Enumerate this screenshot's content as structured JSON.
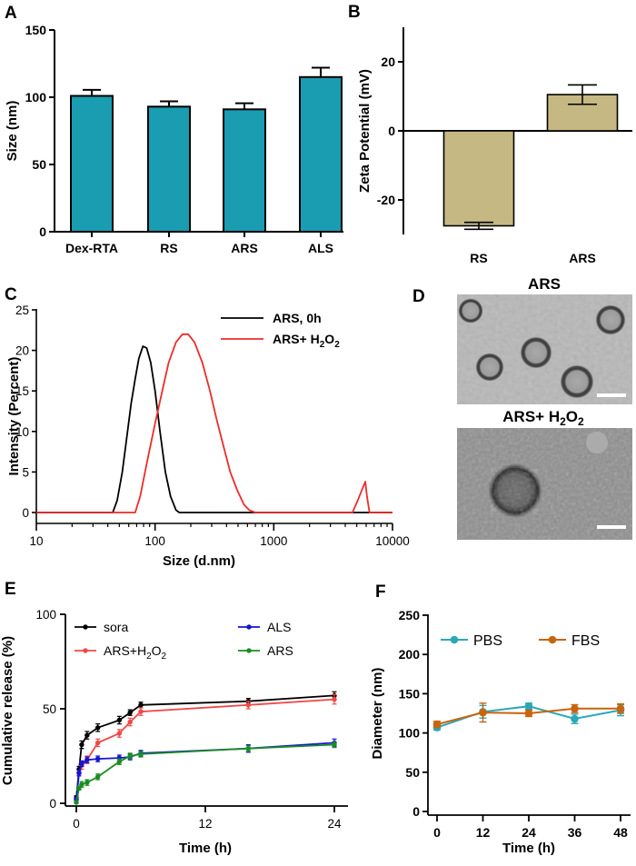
{
  "colors": {
    "teal": "#1a9cb1",
    "khaki": "#c5b883",
    "black": "#000000",
    "red": "#ee2b2b",
    "blue": "#1414d6",
    "green": "#1a8c22",
    "ared": "#f04848",
    "pbs": "#2aa8b8",
    "fbs": "#c8640e"
  },
  "chart_data": [
    {
      "panel": "A",
      "type": "bar",
      "ylabel": "Size (nm)",
      "categories": [
        "Dex-RTA",
        "RS",
        "ARS",
        "ALS"
      ],
      "values": [
        101,
        93,
        91,
        115
      ],
      "errors": [
        4.5,
        4,
        4.5,
        7
      ],
      "ylim": [
        0,
        150
      ],
      "yticks": [
        0,
        50,
        100,
        150
      ]
    },
    {
      "panel": "B",
      "type": "bar",
      "ylabel": "Zeta Potential (mV)",
      "categories": [
        "RS",
        "ARS"
      ],
      "values": [
        -27.5,
        10.5
      ],
      "errors": [
        1,
        2.8
      ],
      "ylim": [
        -30,
        30
      ],
      "yticks": [
        -20,
        0,
        20
      ]
    },
    {
      "panel": "C",
      "type": "line",
      "xlabel": "Size (d.nm)",
      "ylabel": "Intensity (Percent)",
      "xscale": "log",
      "xlim": [
        10,
        10000
      ],
      "xticks": [
        10,
        100,
        1000,
        10000
      ],
      "ylim": [
        0,
        25
      ],
      "yticks": [
        0,
        5,
        10,
        15,
        20,
        25
      ],
      "series": [
        {
          "name": "ARS, 0h",
          "points": [
            [
              10,
              0
            ],
            [
              44,
              0
            ],
            [
              48,
              1.5
            ],
            [
              53,
              5
            ],
            [
              58,
              9.5
            ],
            [
              63,
              13.5
            ],
            [
              68,
              16.5
            ],
            [
              73,
              19
            ],
            [
              79,
              20.5
            ],
            [
              85,
              20.3
            ],
            [
              92,
              18.5
            ],
            [
              100,
              15
            ],
            [
              110,
              10
            ],
            [
              122,
              5
            ],
            [
              135,
              2
            ],
            [
              150,
              0.3
            ],
            [
              160,
              0
            ],
            [
              10000,
              0
            ]
          ]
        },
        {
          "name": "ARS+ H2O2",
          "points": [
            [
              10,
              0
            ],
            [
              68,
              0
            ],
            [
              75,
              2
            ],
            [
              85,
              6
            ],
            [
              100,
              11
            ],
            [
              115,
              15
            ],
            [
              130,
              18.5
            ],
            [
              150,
              21
            ],
            [
              170,
              22
            ],
            [
              190,
              22
            ],
            [
              215,
              21
            ],
            [
              250,
              18.5
            ],
            [
              290,
              15
            ],
            [
              330,
              11.5
            ],
            [
              380,
              8
            ],
            [
              430,
              5
            ],
            [
              490,
              2.8
            ],
            [
              560,
              1
            ],
            [
              620,
              0.3
            ],
            [
              700,
              0
            ],
            [
              4600,
              0
            ],
            [
              5100,
              1.5
            ],
            [
              5600,
              3
            ],
            [
              5900,
              3.8
            ],
            [
              6100,
              2
            ],
            [
              6400,
              0
            ],
            [
              10000,
              0
            ]
          ]
        }
      ]
    },
    {
      "panel": "E",
      "type": "line",
      "xlabel": "Time (h)",
      "ylabel": "Cumulative release (%)",
      "xlim": [
        -1,
        25
      ],
      "xticks": [
        0,
        12,
        24
      ],
      "ylim": [
        0,
        100
      ],
      "yticks": [
        0,
        50,
        100
      ],
      "series": [
        {
          "name": "sora",
          "x": [
            0,
            0.25,
            0.5,
            1,
            2,
            4,
            5,
            6,
            16,
            24
          ],
          "y": [
            3,
            18,
            31,
            36,
            40,
            44,
            48,
            52,
            54,
            57
          ],
          "err": [
            1,
            1.5,
            2,
            2,
            2,
            2,
            1.5,
            1.5,
            1.5,
            2
          ]
        },
        {
          "name": "ARS+H2O2",
          "x": [
            0,
            0.25,
            0.5,
            1,
            2,
            4,
            5,
            6,
            16,
            24
          ],
          "y": [
            2,
            16,
            20,
            23,
            32,
            37,
            43,
            48.5,
            52,
            55
          ],
          "err": [
            1,
            1.5,
            2,
            2,
            2,
            2,
            2,
            2,
            2,
            2.5
          ]
        },
        {
          "name": "ALS",
          "x": [
            0,
            0.25,
            0.5,
            1,
            2,
            4,
            5,
            6,
            16,
            24
          ],
          "y": [
            2,
            16,
            21,
            23,
            23.5,
            24,
            24.5,
            26.5,
            29,
            32
          ],
          "err": [
            1,
            1.5,
            1.5,
            1.5,
            1.5,
            1.5,
            1.5,
            1.5,
            2,
            2
          ]
        },
        {
          "name": "ARS",
          "x": [
            0,
            0.25,
            0.5,
            1,
            2,
            4,
            5,
            6,
            16,
            24
          ],
          "y": [
            0.5,
            8,
            10,
            11,
            14,
            22,
            25,
            26,
            29,
            31
          ],
          "err": [
            0.5,
            1,
            1.5,
            1.5,
            1.5,
            1.5,
            1.5,
            1.5,
            1.5,
            1.5
          ]
        }
      ]
    },
    {
      "panel": "F",
      "type": "line",
      "xlabel": "Time (h)",
      "ylabel": "Diameter (nm)",
      "xlim": [
        0,
        48
      ],
      "xticks": [
        0,
        12,
        24,
        36,
        48
      ],
      "ylim": [
        0,
        250
      ],
      "yticks": [
        0,
        50,
        100,
        150,
        200,
        250
      ],
      "series": [
        {
          "name": "PBS",
          "x": [
            0,
            12,
            24,
            36,
            48
          ],
          "y": [
            107,
            127,
            134,
            118,
            129
          ],
          "err": [
            3,
            8,
            4,
            6,
            7
          ]
        },
        {
          "name": "FBS",
          "x": [
            0,
            12,
            24,
            36,
            48
          ],
          "y": [
            111,
            126,
            125,
            131,
            131
          ],
          "err": [
            4,
            12,
            4,
            5,
            6
          ]
        }
      ]
    }
  ],
  "panel_d": {
    "letter": "D",
    "top_title": "ARS",
    "bottom_title_main": "ARS+ H",
    "bottom_title_sub": "2",
    "bottom_title_tail": "O",
    "bottom_title_sub2": "2"
  }
}
